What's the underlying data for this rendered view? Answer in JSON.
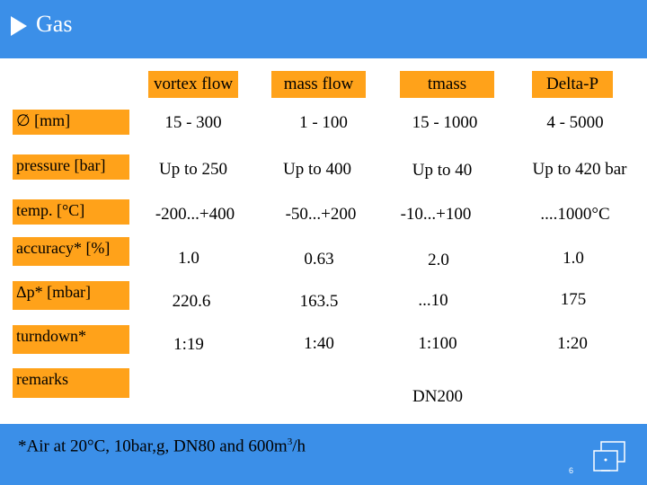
{
  "title": "Gas",
  "columns": [
    "vortex flow",
    "mass flow",
    "tmass",
    "Delta-P"
  ],
  "rows": [
    {
      "label": "∅ [mm]",
      "values": [
        "15 - 300",
        "1 - 100",
        "15 - 1000",
        "4 - 5000"
      ]
    },
    {
      "label": "pressure [bar]",
      "values": [
        "Up to 250",
        "Up to 400",
        "Up to 40",
        "Up to 420 bar"
      ]
    },
    {
      "label": "temp. [°C]",
      "values": [
        "-200...+400",
        "-50...+200",
        "-10...+100",
        "....1000°C"
      ]
    },
    {
      "label": "accuracy* [%]",
      "values": [
        "1.0",
        "0.63",
        "2.0",
        "1.0"
      ]
    },
    {
      "label": "Δp* [mbar]",
      "values": [
        "220.6",
        "163.5",
        "...10",
        "175"
      ]
    },
    {
      "label": "turndown*",
      "values": [
        "1:19",
        "1:40",
        "1:100",
        "1:20"
      ]
    },
    {
      "label": "remarks",
      "values": [
        "",
        "",
        "DN200",
        ""
      ]
    }
  ],
  "footnote_main": "*Air at 20°C, 10bar,g, DN80 and 600m",
  "footnote_sup": "3",
  "footnote_end": "/h",
  "page_number": "6",
  "colors": {
    "header_bar": "#3b8fe8",
    "label_box": "#ffa21a",
    "text": "#000000"
  }
}
